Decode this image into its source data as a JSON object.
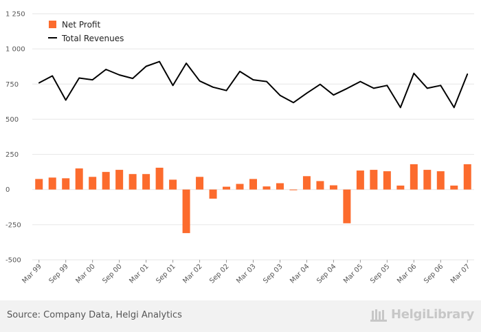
{
  "chart_data": {
    "type": "bar",
    "title": "",
    "xlabel": "",
    "ylabel": "",
    "ylim": [
      -500,
      1250
    ],
    "yticks": [
      -500,
      -250,
      0,
      250,
      500,
      750,
      1000,
      1250
    ],
    "ytick_labels": [
      "-500",
      "-250",
      "0",
      "250",
      "500",
      "750",
      "1 000",
      "1 250"
    ],
    "x_tick_labels": [
      "Mar 99",
      "Sep 99",
      "Mar 00",
      "Sep 00",
      "Mar 01",
      "Sep 01",
      "Mar 02",
      "Sep 02",
      "Mar 03",
      "Sep 03",
      "Mar 04",
      "Sep 04",
      "Mar 05",
      "Sep 05",
      "Mar 06",
      "Sep 06",
      "Mar 07"
    ],
    "grid": true,
    "legend_position": "top-left",
    "colors": {
      "net_profit": "#fc6b2d",
      "total_revenues": "#000000",
      "grid": "#e6e6e6"
    },
    "series": [
      {
        "name": "Net Profit",
        "kind": "bar",
        "values": [
          75,
          85,
          80,
          150,
          90,
          125,
          140,
          110,
          110,
          155,
          70,
          -310,
          90,
          -65,
          20,
          40,
          75,
          22,
          45,
          -5,
          95,
          60,
          30,
          -240,
          135,
          140,
          130,
          28,
          180,
          140,
          130,
          28,
          180
        ]
      },
      {
        "name": "Total Revenues",
        "kind": "line",
        "values": [
          758,
          808,
          636,
          793,
          780,
          854,
          815,
          790,
          876,
          910,
          740,
          898,
          772,
          728,
          704,
          840,
          780,
          768,
          670,
          618,
          685,
          748,
          672,
          718,
          768,
          720,
          740,
          583,
          826,
          720,
          740,
          583,
          822
        ]
      }
    ]
  },
  "footer": {
    "source": "Source: Company Data, Helgi Analytics",
    "logo_text": "HelgiLibrary"
  }
}
